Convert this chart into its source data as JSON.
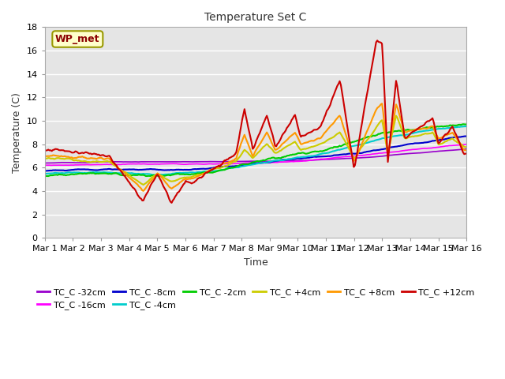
{
  "title": "Temperature Set C",
  "xlabel": "Time",
  "ylabel": "Temperature (C)",
  "ylim": [
    0,
    18
  ],
  "annotation": "WP_met",
  "background_color": "#e5e5e5",
  "series": [
    {
      "label": "TC_C -32cm",
      "color": "#9900cc"
    },
    {
      "label": "TC_C -16cm",
      "color": "#ff00ff"
    },
    {
      "label": "TC_C -8cm",
      "color": "#0000cc"
    },
    {
      "label": "TC_C -4cm",
      "color": "#00cccc"
    },
    {
      "label": "TC_C -2cm",
      "color": "#00cc00"
    },
    {
      "label": "TC_C +4cm",
      "color": "#cccc00"
    },
    {
      "label": "TC_C +8cm",
      "color": "#ff9900"
    },
    {
      "label": "TC_C +12cm",
      "color": "#cc0000"
    }
  ],
  "xtick_labels": [
    "Mar 1",
    "Mar 2",
    "Mar 3",
    "Mar 4",
    "Mar 5",
    "Mar 6",
    "Mar 7",
    "Mar 8",
    "Mar 9",
    "Mar 10",
    "Mar 11",
    "Mar 12",
    "Mar 13",
    "Mar 14",
    "Mar 15",
    "Mar 16"
  ],
  "figsize": [
    6.4,
    4.8
  ],
  "dpi": 100
}
